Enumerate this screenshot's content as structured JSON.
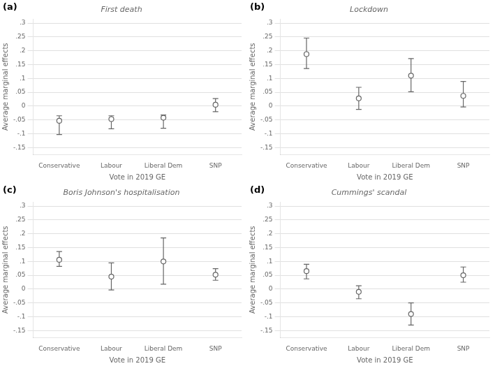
{
  "chart_data": [
    {
      "type": "errorbar",
      "title": "First death",
      "annotation": "(a)",
      "xlabel": "Vote in 2019 GE",
      "ylabel": "Average marginal effects",
      "categories": [
        "Conservative",
        "Labour",
        "Liberal Dem",
        "SNP"
      ],
      "values": [
        -0.053,
        -0.047,
        -0.042,
        0.005
      ],
      "err_low": [
        0.05,
        0.035,
        0.038,
        0.025
      ],
      "err_high": [
        0.018,
        0.012,
        0.01,
        0.022
      ],
      "color": "#666666",
      "marker": "circle",
      "ylim": [
        -0.175,
        0.315
      ],
      "yticks": [
        {
          "value": -0.15,
          "label": "-.15"
        },
        {
          "value": -0.1,
          "label": "-.1"
        },
        {
          "value": -0.05,
          "label": "-.05"
        },
        0,
        {
          "value": 0.05,
          "label": ".05"
        },
        {
          "value": 0.1,
          "label": ".1"
        },
        {
          "value": 0.15,
          "label": ".15"
        },
        {
          "value": 0.2,
          "label": ".2"
        },
        {
          "value": 0.25,
          "label": ".25"
        },
        {
          "value": 0.3,
          "label": ".3"
        }
      ],
      "grid": "y"
    },
    {
      "type": "errorbar",
      "title": "Lockdown",
      "annotation": "(b)",
      "xlabel": "Vote in 2019 GE",
      "ylabel": "Average marginal effects",
      "categories": [
        "Conservative",
        "Labour",
        "Liberal Dem",
        "SNP"
      ],
      "values": [
        0.188,
        0.028,
        0.11,
        0.037
      ],
      "err_low": [
        0.052,
        0.04,
        0.058,
        0.04
      ],
      "err_high": [
        0.058,
        0.04,
        0.062,
        0.052
      ],
      "color": "#666666",
      "marker": "circle",
      "ylim": [
        -0.175,
        0.315
      ],
      "yticks": [
        {
          "value": -0.15,
          "label": "-.15"
        },
        {
          "value": -0.1,
          "label": "-.1"
        },
        {
          "value": -0.05,
          "label": "-.05"
        },
        0,
        {
          "value": 0.05,
          "label": ".05"
        },
        {
          "value": 0.1,
          "label": ".1"
        },
        {
          "value": 0.15,
          "label": ".15"
        },
        {
          "value": 0.2,
          "label": ".2"
        },
        {
          "value": 0.25,
          "label": ".25"
        },
        {
          "value": 0.3,
          "label": ".3"
        }
      ],
      "grid": "y"
    },
    {
      "type": "errorbar",
      "title": "Boris Johnson's hospitalisation",
      "annotation": "(c)",
      "xlabel": "Vote in 2019 GE",
      "ylabel": "Average marginal effects",
      "categories": [
        "Conservative",
        "Labour",
        "Liberal Dem",
        "SNP"
      ],
      "values": [
        0.106,
        0.045,
        0.1,
        0.052
      ],
      "err_low": [
        0.024,
        0.048,
        0.082,
        0.02
      ],
      "err_high": [
        0.03,
        0.05,
        0.085,
        0.022
      ],
      "color": "#666666",
      "marker": "circle",
      "ylim": [
        -0.175,
        0.315
      ],
      "yticks": [
        {
          "value": -0.15,
          "label": "-.15"
        },
        {
          "value": -0.1,
          "label": "-.1"
        },
        {
          "value": -0.05,
          "label": "-.05"
        },
        0,
        {
          "value": 0.05,
          "label": ".05"
        },
        {
          "value": 0.1,
          "label": ".1"
        },
        {
          "value": 0.15,
          "label": ".15"
        },
        {
          "value": 0.2,
          "label": ".2"
        },
        {
          "value": 0.25,
          "label": ".25"
        },
        {
          "value": 0.3,
          "label": ".3"
        }
      ],
      "grid": "y"
    },
    {
      "type": "errorbar",
      "title": "Cummings' scandal",
      "annotation": "(d)",
      "xlabel": "Vote in 2019 GE",
      "ylabel": "Average marginal effects",
      "categories": [
        "Conservative",
        "Labour",
        "Liberal Dem",
        "SNP"
      ],
      "values": [
        0.065,
        -0.01,
        -0.09,
        0.05
      ],
      "err_low": [
        0.028,
        0.025,
        0.04,
        0.025
      ],
      "err_high": [
        0.025,
        0.022,
        0.04,
        0.03
      ],
      "color": "#666666",
      "marker": "circle",
      "ylim": [
        -0.175,
        0.315
      ],
      "yticks": [
        {
          "value": -0.15,
          "label": "-.15"
        },
        {
          "value": -0.1,
          "label": "-.1"
        },
        {
          "value": -0.05,
          "label": "-.05"
        },
        0,
        {
          "value": 0.05,
          "label": ".05"
        },
        {
          "value": 0.1,
          "label": ".1"
        },
        {
          "value": 0.15,
          "label": ".15"
        },
        {
          "value": 0.2,
          "label": ".2"
        },
        {
          "value": 0.25,
          "label": ".25"
        },
        {
          "value": 0.3,
          "label": ".3"
        }
      ],
      "grid": "y"
    }
  ]
}
